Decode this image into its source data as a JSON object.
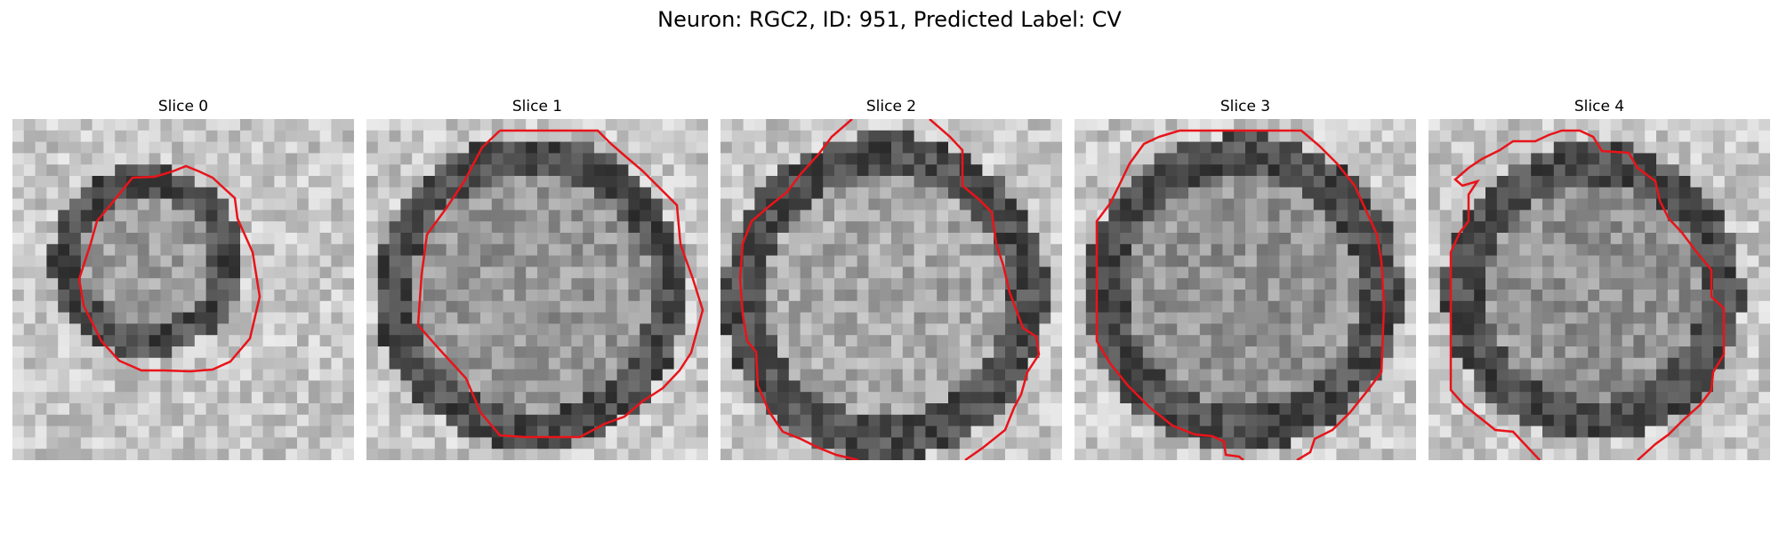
{
  "figure": {
    "title": "Neuron: RGC2, ID: 951, Predicted Label: CV"
  },
  "panels": [
    {
      "title": "Slice 0",
      "contour_color": "#e8141a",
      "image": "grayscale-cell-crop"
    },
    {
      "title": "Slice 1",
      "contour_color": "#e8141a",
      "image": "grayscale-cell-crop"
    },
    {
      "title": "Slice 2",
      "contour_color": "#e8141a",
      "image": "grayscale-cell-crop"
    },
    {
      "title": "Slice 3",
      "contour_color": "#e8141a",
      "image": "grayscale-cell-crop"
    },
    {
      "title": "Slice 4",
      "contour_color": "#e8141a",
      "image": "grayscale-cell-crop"
    }
  ]
}
